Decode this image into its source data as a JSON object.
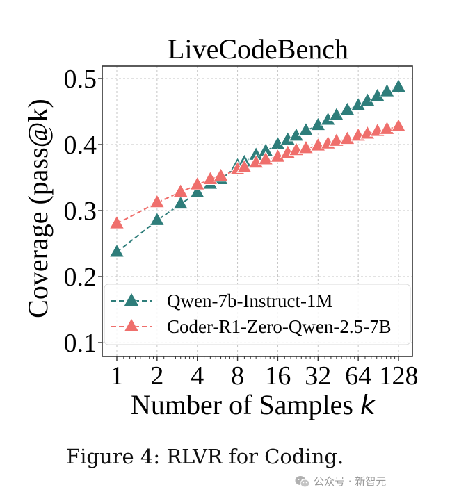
{
  "chart_data": {
    "type": "line",
    "title": "LiveCodeBench",
    "xlabel": "Number of Samples",
    "xlabel_var": "k",
    "ylabel": "Coverage (pass@k)",
    "xscale": "log2",
    "xlim": [
      0.8,
      150
    ],
    "ylim": [
      0.08,
      0.52
    ],
    "xticks": [
      1,
      2,
      4,
      8,
      16,
      32,
      64,
      128
    ],
    "xtick_labels": [
      "1",
      "2",
      "4",
      "8",
      "16",
      "32",
      "64",
      "128"
    ],
    "yticks": [
      0.1,
      0.2,
      0.3,
      0.4,
      0.5
    ],
    "ytick_labels": [
      "0.1",
      "0.2",
      "0.3",
      "0.4",
      "0.5"
    ],
    "grid": true,
    "legend_position": "bottom",
    "x": [
      1,
      2,
      3,
      4,
      5,
      6,
      8,
      9,
      11,
      13,
      16,
      19,
      22,
      26,
      32,
      38,
      44,
      53,
      64,
      75,
      89,
      105,
      128
    ],
    "series": [
      {
        "name": "Qwen-7b-Instruct-1M",
        "color": "#2e7d7a",
        "marker": "triangle",
        "values": [
          0.237,
          0.285,
          0.31,
          0.327,
          0.34,
          0.347,
          0.368,
          0.373,
          0.384,
          0.39,
          0.4,
          0.407,
          0.413,
          0.421,
          0.429,
          0.437,
          0.444,
          0.452,
          0.459,
          0.466,
          0.473,
          0.48,
          0.487
        ]
      },
      {
        "name": "Coder-R1-Zero-Qwen-2.5-7B",
        "color": "#ef6f6c",
        "marker": "triangle",
        "values": [
          0.28,
          0.312,
          0.328,
          0.339,
          0.347,
          0.352,
          0.362,
          0.365,
          0.372,
          0.377,
          0.381,
          0.387,
          0.391,
          0.394,
          0.398,
          0.401,
          0.405,
          0.408,
          0.413,
          0.416,
          0.42,
          0.423,
          0.427
        ]
      }
    ]
  },
  "caption": "Figure 4: RLVR for Coding.",
  "watermark": {
    "icon": "wechat-icon",
    "text": "公众号 · 新智元"
  }
}
